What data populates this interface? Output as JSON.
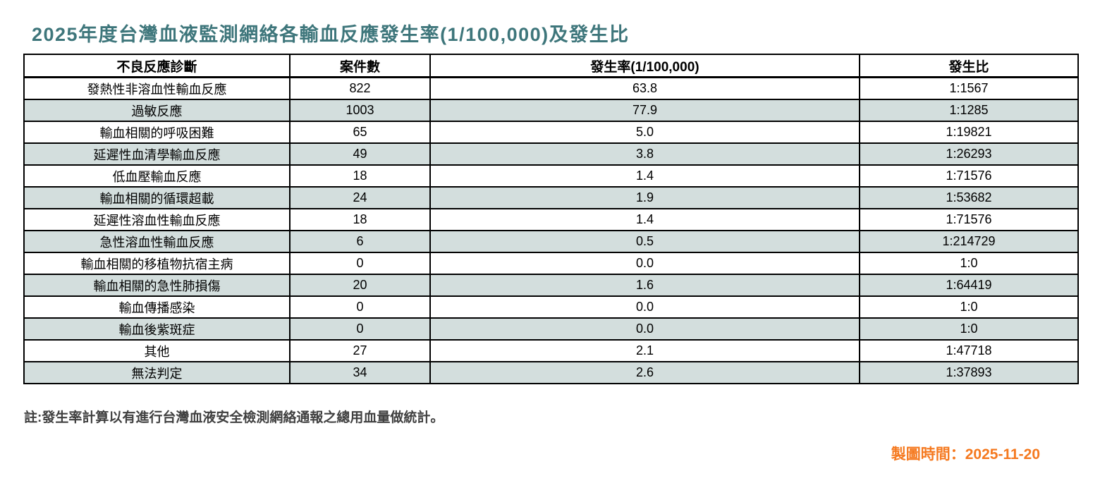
{
  "page": {
    "title": "2025年度台灣血液監測網絡各輸血反應發生率(1/100,000)及發生比",
    "note": "註:發生率計算以有進行台灣血液安全檢測網絡通報之總用血量做統計。",
    "footer": {
      "timestamp": "製圖時間：2025-11-20"
    }
  },
  "colors": {
    "title_teal": "#3E767B",
    "row_alt": "#D3DEDD",
    "note_gray": "#404040",
    "timestamp_orange": "#F5791F",
    "border": "#000000"
  },
  "table": {
    "headers": [
      "不良反應診斷",
      "案件數",
      "發生率(1/100,000)",
      "發生比"
    ],
    "rows": [
      {
        "diagnosis": "發熱性非溶血性輸血反應",
        "cases": "822",
        "rate": "63.8",
        "ratio": "1:1567"
      },
      {
        "diagnosis": "過敏反應",
        "cases": "1003",
        "rate": "77.9",
        "ratio": "1:1285"
      },
      {
        "diagnosis": "輸血相關的呼吸困難",
        "cases": "65",
        "rate": "5.0",
        "ratio": "1:19821"
      },
      {
        "diagnosis": "延遲性血清學輸血反應",
        "cases": "49",
        "rate": "3.8",
        "ratio": "1:26293"
      },
      {
        "diagnosis": "低血壓輸血反應",
        "cases": "18",
        "rate": "1.4",
        "ratio": "1:71576"
      },
      {
        "diagnosis": "輸血相關的循環超載",
        "cases": "24",
        "rate": "1.9",
        "ratio": "1:53682"
      },
      {
        "diagnosis": "延遲性溶血性輸血反應",
        "cases": "18",
        "rate": "1.4",
        "ratio": "1:71576"
      },
      {
        "diagnosis": "急性溶血性輸血反應",
        "cases": "6",
        "rate": "0.5",
        "ratio": "1:214729"
      },
      {
        "diagnosis": "輸血相關的移植物抗宿主病",
        "cases": "0",
        "rate": "0.0",
        "ratio": "1:0"
      },
      {
        "diagnosis": "輸血相關的急性肺損傷",
        "cases": "20",
        "rate": "1.6",
        "ratio": "1:64419"
      },
      {
        "diagnosis": "輸血傳播感染",
        "cases": "0",
        "rate": "0.0",
        "ratio": "1:0"
      },
      {
        "diagnosis": "輸血後紫斑症",
        "cases": "0",
        "rate": "0.0",
        "ratio": "1:0"
      },
      {
        "diagnosis": "其他",
        "cases": "27",
        "rate": "2.1",
        "ratio": "1:47718"
      },
      {
        "diagnosis": "無法判定",
        "cases": "34",
        "rate": "2.6",
        "ratio": "1:37893"
      }
    ]
  },
  "chart_data": {
    "type": "table",
    "title": "2025年度台灣血液監測網絡各輸血反應發生率(1/100,000)及發生比",
    "columns": [
      "不良反應診斷",
      "案件數",
      "發生率(1/100,000)",
      "發生比"
    ],
    "rows": [
      [
        "發熱性非溶血性輸血反應",
        822,
        63.8,
        "1:1567"
      ],
      [
        "過敏反應",
        1003,
        77.9,
        "1:1285"
      ],
      [
        "輸血相關的呼吸困難",
        65,
        5.0,
        "1:19821"
      ],
      [
        "延遲性血清學輸血反應",
        49,
        3.8,
        "1:26293"
      ],
      [
        "低血壓輸血反應",
        18,
        1.4,
        "1:71576"
      ],
      [
        "輸血相關的循環超載",
        24,
        1.9,
        "1:53682"
      ],
      [
        "延遲性溶血性輸血反應",
        18,
        1.4,
        "1:71576"
      ],
      [
        "急性溶血性輸血反應",
        6,
        0.5,
        "1:214729"
      ],
      [
        "輸血相關的移植物抗宿主病",
        0,
        0.0,
        "1:0"
      ],
      [
        "輸血相關的急性肺損傷",
        20,
        1.6,
        "1:64419"
      ],
      [
        "輸血傳播感染",
        0,
        0.0,
        "1:0"
      ],
      [
        "輸血後紫斑症",
        0,
        0.0,
        "1:0"
      ],
      [
        "其他",
        27,
        2.1,
        "1:47718"
      ],
      [
        "無法判定",
        34,
        2.6,
        "1:37893"
      ]
    ],
    "footnote": "註:發生率計算以有進行台灣血液安全檢測網絡通報之總用血量做統計。",
    "generated_label": "製圖時間：2025-11-20"
  }
}
